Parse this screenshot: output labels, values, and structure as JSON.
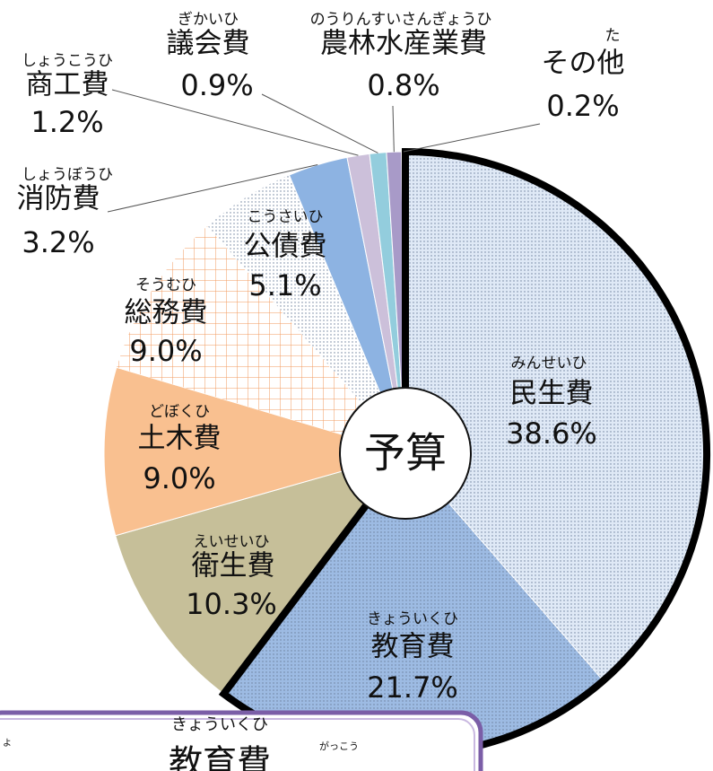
{
  "chart_data": {
    "type": "pie",
    "center_label": "予算",
    "categories": [
      "民生費",
      "教育費",
      "衛生費",
      "土木費",
      "総務費",
      "公債費",
      "消防費",
      "商工費",
      "議会費",
      "農林水産業費",
      "その他"
    ],
    "readings": [
      "みんせいひ",
      "きょういくひ",
      "えいせいひ",
      "どぼくひ",
      "そうむひ",
      "こうさいひ",
      "しょうぼうひ",
      "しょうこうひ",
      "ぎかいひ",
      "のうりんすいさんぎょうひ",
      "た"
    ],
    "values": [
      38.6,
      21.7,
      10.3,
      9.0,
      9.0,
      5.1,
      3.2,
      1.2,
      0.9,
      0.8,
      0.2
    ],
    "value_labels": [
      "38.6%",
      "21.7%",
      "10.3%",
      "9.0%",
      "9.0%",
      "5.1%",
      "3.2%",
      "1.2%",
      "0.9%",
      "0.8%",
      "0.2%"
    ],
    "colors": [
      "#dfe9f6",
      "#9dbbe3",
      "#c6bf99",
      "#f9c090",
      "#ffffff",
      "#ffffff",
      "#8db3e2",
      "#ccc0da",
      "#93cddd",
      "#a89ac8",
      "#4b4b60"
    ],
    "patterns": [
      "dots",
      "dots",
      "none",
      "none",
      "grid",
      "dots",
      "none",
      "none",
      "none",
      "none",
      "none"
    ]
  },
  "callout": {
    "left": "よ",
    "reading": "きょういくひ",
    "title": "教育費",
    "note": "がっこう"
  }
}
